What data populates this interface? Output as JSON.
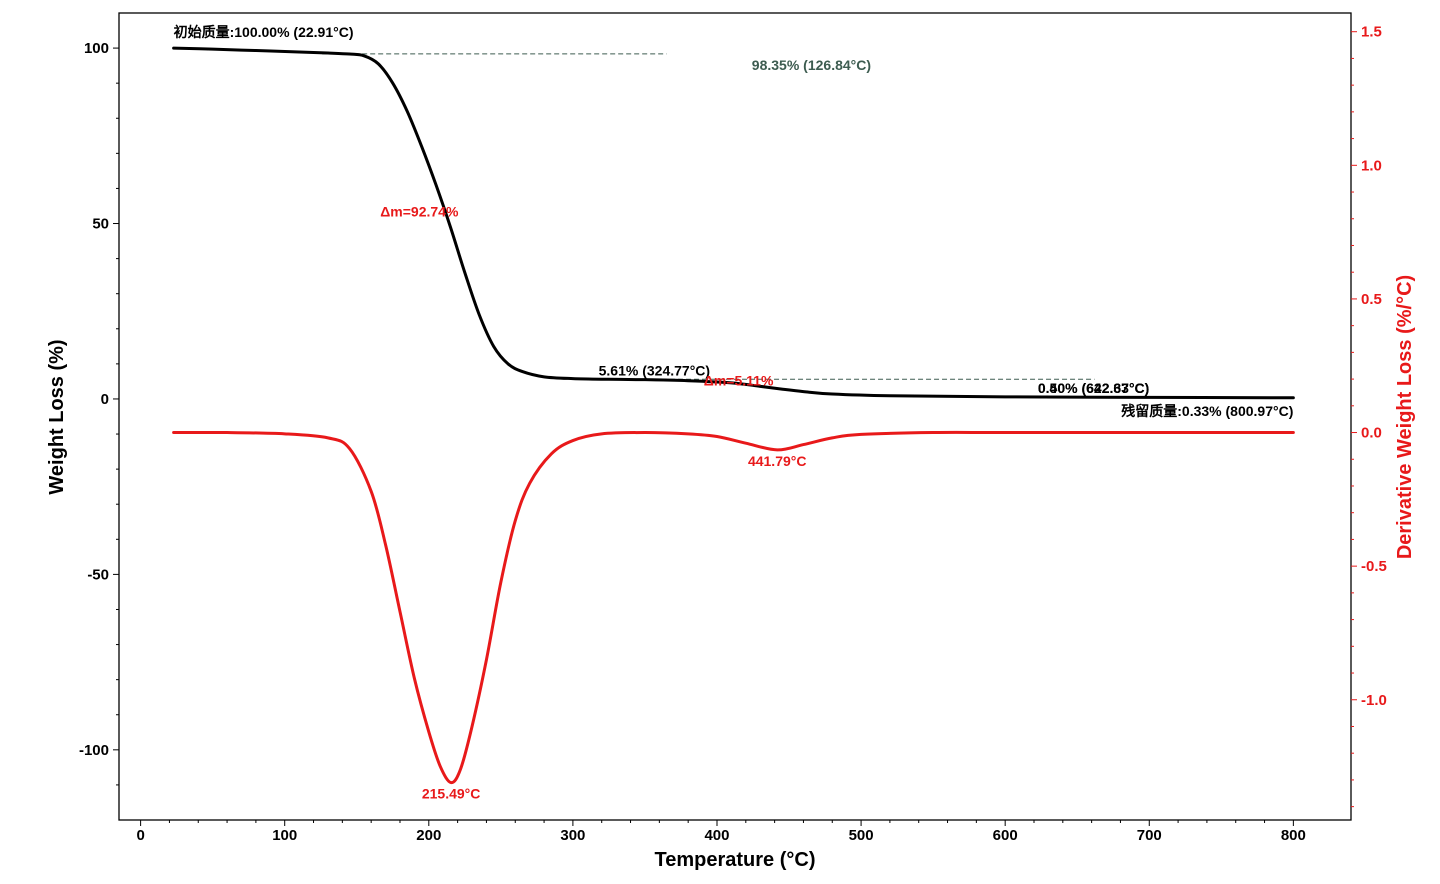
{
  "chart_data": {
    "type": "line",
    "xlabel": "Temperature (°C)",
    "ylabel_left": "Weight Loss (%)",
    "ylabel_right": "Derivative Weight Loss (%/°C)",
    "xlim": [
      -15,
      840
    ],
    "ylim_left": [
      -120,
      110
    ],
    "ylim_right": [
      -1.45,
      1.57
    ],
    "x_ticks": [
      0,
      100,
      200,
      300,
      400,
      500,
      600,
      700,
      800
    ],
    "y_left_ticks": [
      -100,
      -50,
      0,
      50,
      100
    ],
    "y_right_ticks": [
      -1.0,
      -0.5,
      0.0,
      0.5,
      1.0,
      1.5
    ],
    "y_right_tick_labels": [
      "-1.0",
      "-0.5",
      "0.0",
      "0.5",
      "1.0",
      "1.5"
    ],
    "colors": {
      "weight": "#000000",
      "derivative": "#e8191a",
      "guide": "#3d5c50",
      "axis_right": "#e8191a"
    },
    "series": [
      {
        "name": "Weight",
        "axis": "left",
        "color": "#000000",
        "x": [
          22.9,
          50,
          80,
          110,
          130,
          145,
          155,
          165,
          175,
          185,
          195,
          205,
          215,
          225,
          235,
          245,
          255,
          265,
          280,
          300,
          325,
          350,
          380,
          410,
          430,
          445,
          460,
          480,
          520,
          600,
          700,
          800
        ],
        "y": [
          100,
          99.7,
          99.3,
          98.9,
          98.6,
          98.3,
          97.8,
          95.5,
          90,
          82,
          72,
          61,
          49,
          36,
          24,
          15,
          10,
          7.8,
          6.3,
          5.8,
          5.6,
          5.5,
          5.2,
          4.6,
          3.6,
          2.8,
          2.1,
          1.4,
          0.9,
          0.6,
          0.45,
          0.33
        ]
      },
      {
        "name": "Derivative",
        "axis": "right",
        "color": "#e8191a",
        "x": [
          22.9,
          60,
          100,
          130,
          145,
          160,
          170,
          180,
          190,
          200,
          208,
          215.5,
          222,
          230,
          240,
          250,
          260,
          270,
          285,
          300,
          320,
          350,
          380,
          400,
          420,
          441.8,
          460,
          480,
          500,
          550,
          600,
          700,
          800
        ],
        "y": [
          0.0,
          0.0,
          -0.005,
          -0.02,
          -0.06,
          -0.22,
          -0.42,
          -0.67,
          -0.92,
          -1.12,
          -1.25,
          -1.31,
          -1.26,
          -1.1,
          -0.85,
          -0.56,
          -0.33,
          -0.19,
          -0.08,
          -0.03,
          -0.005,
          0.0,
          -0.005,
          -0.015,
          -0.04,
          -0.065,
          -0.045,
          -0.02,
          -0.007,
          0.0,
          0.0,
          0.0,
          0.0
        ]
      }
    ],
    "guides": [
      {
        "name": "guide-line-step1",
        "x1": 126,
        "x2": 365,
        "y": 98.35
      },
      {
        "name": "guide-line-step2",
        "x1": 323,
        "x2": 662,
        "y": 5.61
      }
    ],
    "annotations": [
      {
        "name": "initial-mass-label",
        "text": "初始质量:100.00% (22.91°C)",
        "x": 22.9,
        "y": 100,
        "axis": "left",
        "anchor": "start",
        "dx": 0,
        "dy": -11,
        "color": "#000000"
      },
      {
        "name": "step1-end-label",
        "text": "98.35% (126.84°C)",
        "x": 327,
        "y": 98.35,
        "axis": "left",
        "anchor": "start",
        "dx": 140,
        "dy": 16,
        "color": "#3d5c50"
      },
      {
        "name": "step1-delta-label",
        "text": "Δm=92.74%",
        "x": 215,
        "y": 52,
        "axis": "left",
        "anchor": "end",
        "dx": 8,
        "dy": 0,
        "color": "#e8191a"
      },
      {
        "name": "step2-start-label",
        "text": "5.61% (324.77°C)",
        "x": 324.8,
        "y": 5.61,
        "axis": "left",
        "anchor": "start",
        "dx": -10,
        "dy": -4,
        "color": "#000000"
      },
      {
        "name": "step2-delta-label",
        "text": "Δm=5.11%",
        "x": 415,
        "y": 3.8,
        "axis": "left",
        "anchor": "middle",
        "dx": 0,
        "dy": 0,
        "color": "#e8191a"
      },
      {
        "name": "step2-end-label-a",
        "text": "0.40% (622.67°C)",
        "x": 622.7,
        "y": 0.5,
        "axis": "left",
        "anchor": "start",
        "dx": 0,
        "dy": -4,
        "color": "#000000"
      },
      {
        "name": "step2-end-label-b",
        "text": "0.50% (642.33°C)",
        "x": 622.7,
        "y": 0.5,
        "axis": "left",
        "anchor": "start",
        "dx": 0,
        "dy": -4,
        "color": "#000000"
      },
      {
        "name": "residual-mass-label",
        "text": "残留质量:0.33% (800.97°C)",
        "x": 800,
        "y": 0.33,
        "axis": "left",
        "anchor": "end",
        "dx": 0,
        "dy": 18,
        "color": "#000000"
      },
      {
        "name": "peak1-label",
        "text": "215.49°C",
        "x": 215.5,
        "y": -1.31,
        "axis": "right",
        "anchor": "middle",
        "dx": 0,
        "dy": 16,
        "color": "#e8191a"
      },
      {
        "name": "peak2-label",
        "text": "441.79°C",
        "x": 441.8,
        "y": -0.065,
        "axis": "right",
        "anchor": "middle",
        "dx": 0,
        "dy": 16,
        "color": "#e8191a"
      }
    ]
  }
}
